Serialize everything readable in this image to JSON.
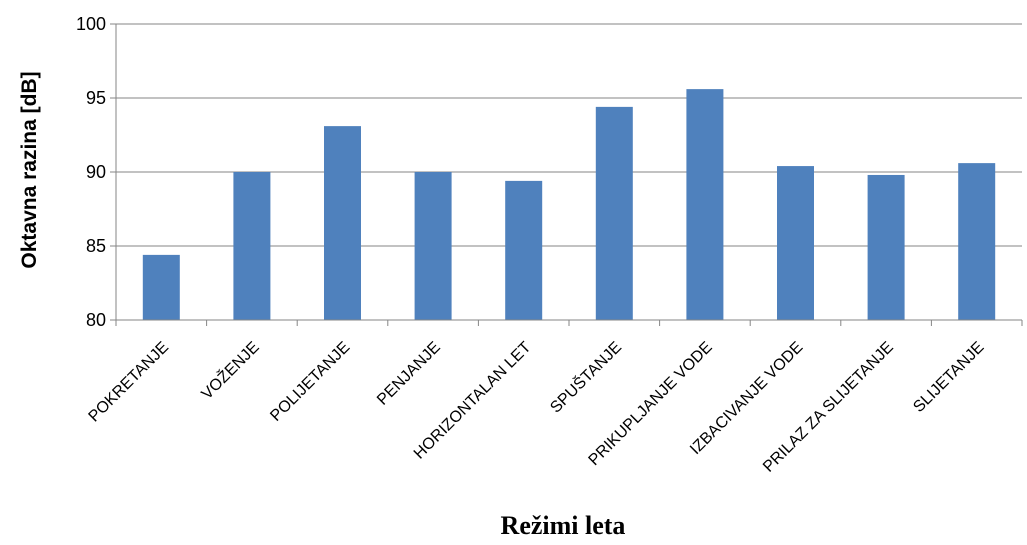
{
  "chart_data": {
    "type": "bar",
    "title": "",
    "xlabel": "Režimi leta",
    "ylabel": "Oktavna razina [dB]",
    "ylim": [
      80,
      100
    ],
    "yticks": [
      80,
      85,
      90,
      95,
      100
    ],
    "grid": true,
    "legend": "none",
    "bar_color": "#4F81BD",
    "categories": [
      "POKRETANJE",
      "VOŽENJE",
      "POLIJETANJE",
      "PENJANJE",
      "HORIZONTALAN LET",
      "SPUŠTANJE",
      "PRIKUPLJANJE VODE",
      "IZBACIVANJE VODE",
      "PRILAZ ZA SLIJETANJE",
      "SLIJETANJE"
    ],
    "values": [
      84.4,
      90.0,
      93.1,
      90.0,
      89.4,
      94.4,
      95.6,
      90.4,
      89.8,
      90.6
    ]
  }
}
